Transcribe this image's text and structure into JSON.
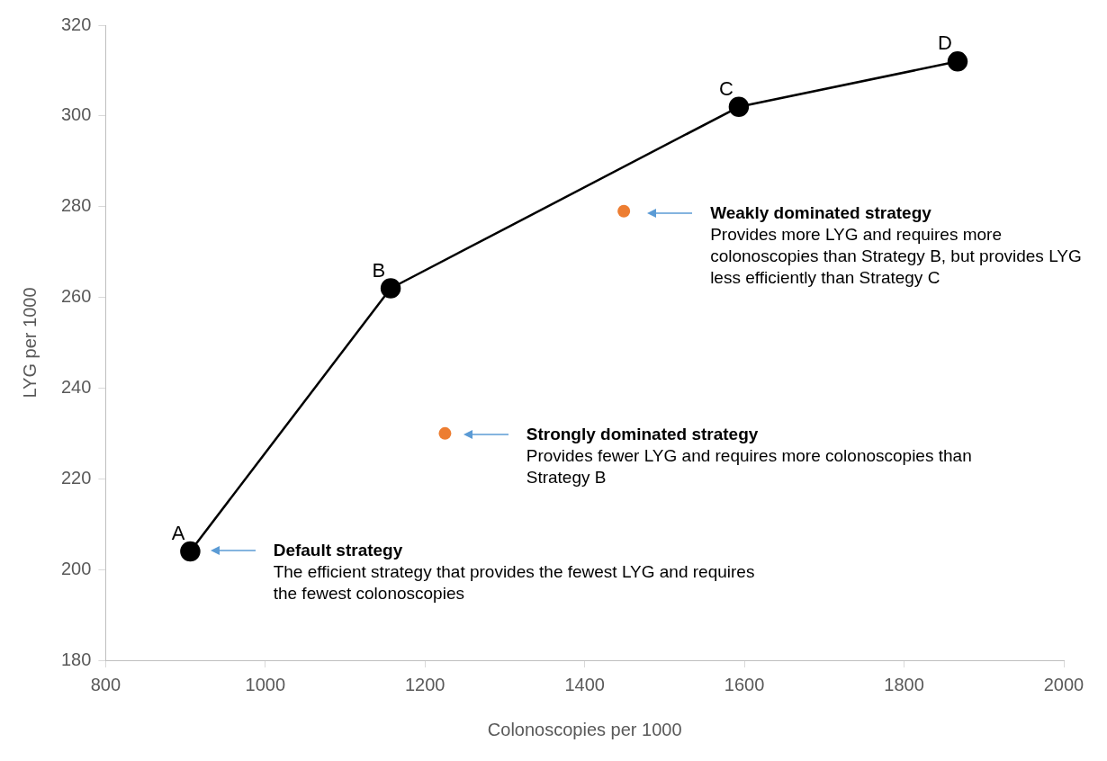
{
  "chart_data": {
    "type": "line",
    "xlabel": "Colonoscopies per 1000",
    "ylabel": "LYG per 1000",
    "xlim": [
      800,
      2000
    ],
    "xticks": [
      800,
      1000,
      1200,
      1400,
      1600,
      1800,
      2000
    ],
    "ylim": [
      180,
      320
    ],
    "yticks": [
      180,
      200,
      220,
      240,
      260,
      280,
      300,
      320
    ],
    "grid": false,
    "legend": false,
    "marker": "circle",
    "line_style": "solid",
    "series": [
      {
        "type": "line",
        "color": "#000000",
        "x": [
          906,
          1157,
          1593,
          1867
        ],
        "values": [
          204,
          262,
          302,
          312
        ],
        "value_labels": [
          "A",
          "B",
          "C",
          "D"
        ]
      },
      {
        "type": "scatter",
        "color": "#ed7d31",
        "x": [
          1449,
          1225
        ],
        "values": [
          279,
          230
        ]
      }
    ],
    "annotations": [
      "Default strategy\nThe efficient strategy that provides the fewest LYG and requires the fewest colonoscopies",
      "Strongly dominated strategy\nProvides fewer LYG and requires more colonoscopies than Strategy B",
      "Weakly dominated strategy\nProvides more LYG and requires more colonoscopies than Strategy B, but provides LYG less efficiently than Strategy C"
    ]
  }
}
